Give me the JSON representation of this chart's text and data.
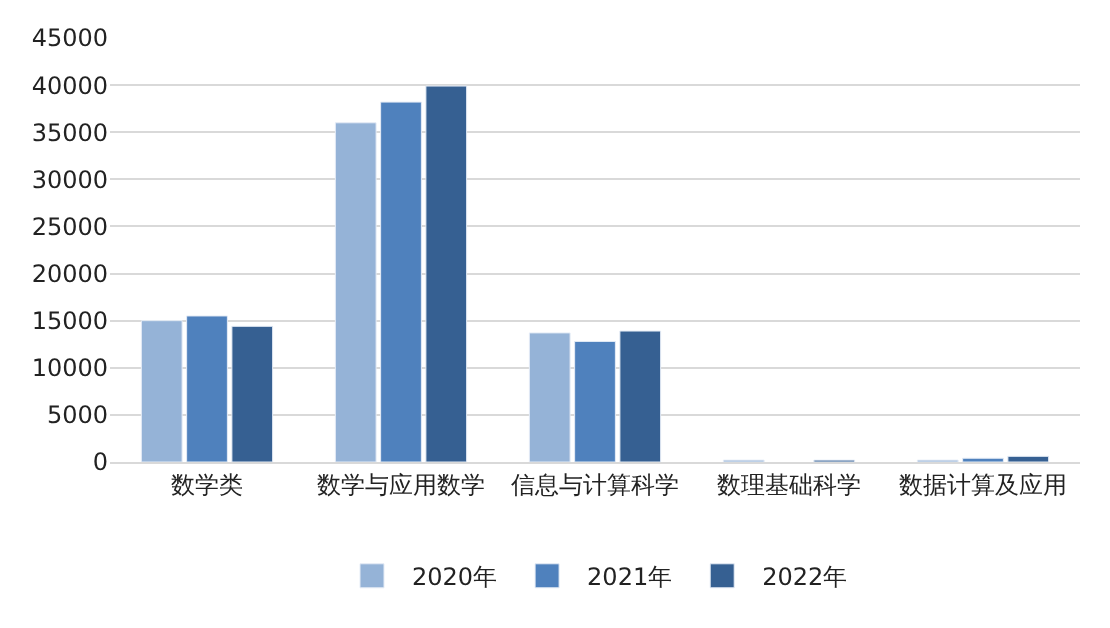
{
  "chart_data": {
    "type": "bar",
    "categories": [
      "数学类",
      "数学与应用数学",
      "信息与计算科学",
      "数理基础科学",
      "数据计算及应用"
    ],
    "series": [
      {
        "name": "2020年",
        "color": "#95b3d7",
        "values": [
          15000,
          36000,
          13700,
          200,
          200
        ]
      },
      {
        "name": "2021年",
        "color": "#4f81bd",
        "values": [
          15500,
          38200,
          12800,
          null,
          400
        ]
      },
      {
        "name": "2022年",
        "color": "#366092",
        "values": [
          14400,
          39900,
          13900,
          200,
          600
        ]
      }
    ],
    "ylim": [
      0,
      45000
    ],
    "yticks": [
      0,
      5000,
      10000,
      15000,
      20000,
      25000,
      30000,
      35000,
      40000,
      45000
    ],
    "grid": "y",
    "legend": "bottom"
  }
}
